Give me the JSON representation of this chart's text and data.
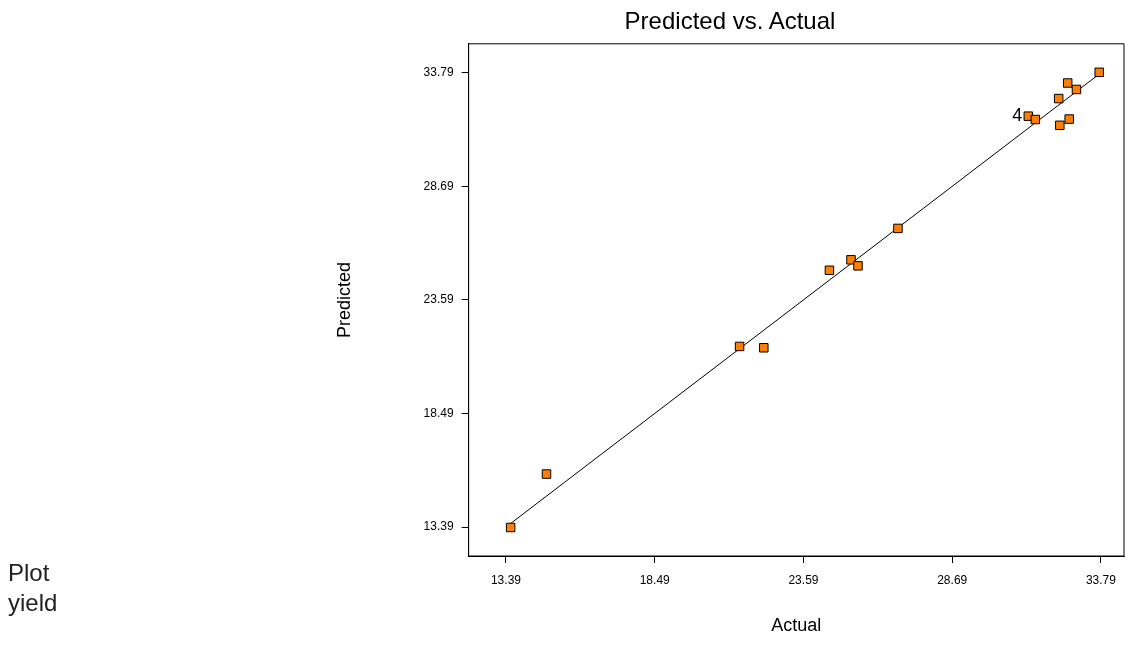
{
  "chart_data": {
    "type": "scatter",
    "title": "Predicted vs. Actual",
    "xlabel": "Actual",
    "ylabel": "Predicted",
    "annotations": [
      "Plot",
      "yield",
      {
        "text": "4",
        "x": 31.3,
        "y": 31.84
      }
    ],
    "xlim": [
      12.11,
      34.58
    ],
    "ylim": [
      12.09,
      35.09
    ],
    "xticks": [
      13.39,
      18.49,
      23.59,
      28.69,
      33.79
    ],
    "yticks": [
      13.39,
      18.49,
      23.59,
      28.69,
      33.79
    ],
    "grid": false,
    "legend": false,
    "marker": "square",
    "series": [
      {
        "type": "line",
        "color": "#000000",
        "marker": "none",
        "x": [
          13.39,
          33.79
        ],
        "values": [
          13.39,
          33.79
        ]
      },
      {
        "type": "scatter",
        "color": "#ff7f00",
        "x": [
          33.73,
          32.65,
          32.95,
          32.34,
          31.3,
          31.54,
          32.7,
          32.38,
          26.83,
          25.22,
          25.46,
          24.48,
          21.4,
          22.23,
          14.78,
          13.55
        ],
        "values": [
          33.81,
          33.33,
          33.04,
          32.63,
          31.84,
          31.69,
          31.71,
          31.43,
          26.8,
          25.39,
          25.12,
          24.92,
          21.5,
          21.44,
          15.77,
          13.37
        ]
      }
    ]
  }
}
